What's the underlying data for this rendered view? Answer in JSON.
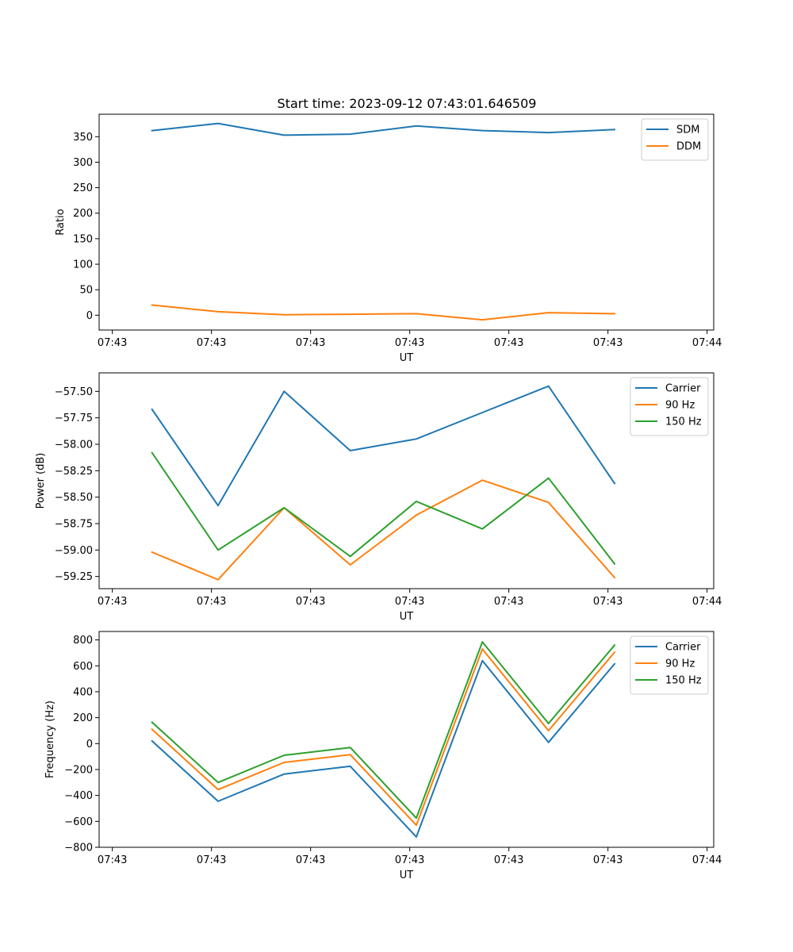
{
  "figure_title": "Start time: 2023-09-12 07:43:01.646509",
  "colors": {
    "blue": "#1f77b4",
    "orange": "#ff7f0e",
    "green": "#2ca02c"
  },
  "chart_data": [
    {
      "type": "line",
      "title": "Start time: 2023-09-12 07:43:01.646509",
      "xlabel": "UT",
      "ylabel": "Ratio",
      "x": [
        1,
        2,
        3,
        4,
        5,
        6,
        7,
        8
      ],
      "xlim": [
        0.2,
        9.5
      ],
      "xticks": [
        0.4,
        1.9,
        3.4,
        4.9,
        6.4,
        7.9,
        9.4
      ],
      "xtick_labels": [
        "07:43",
        "07:43",
        "07:43",
        "07:43",
        "07:43",
        "07:43",
        "07:44"
      ],
      "ylim": [
        -29,
        394
      ],
      "yticks": [
        0,
        50,
        100,
        150,
        200,
        250,
        300,
        350
      ],
      "ytick_labels": [
        "0",
        "50",
        "100",
        "150",
        "200",
        "250",
        "300",
        "350"
      ],
      "legend": "top-right",
      "series": [
        {
          "name": "SDM",
          "color": "#1f77b4",
          "values": [
            362,
            376,
            353,
            355,
            371,
            362,
            358,
            364
          ]
        },
        {
          "name": "DDM",
          "color": "#ff7f0e",
          "values": [
            20,
            7,
            1,
            2,
            3,
            -9,
            5,
            3
          ]
        }
      ]
    },
    {
      "type": "line",
      "title": "",
      "xlabel": "UT",
      "ylabel": "Power (dB)",
      "x": [
        1,
        2,
        3,
        4,
        5,
        6,
        7,
        8
      ],
      "xlim": [
        0.2,
        9.5
      ],
      "xticks": [
        0.4,
        1.9,
        3.4,
        4.9,
        6.4,
        7.9,
        9.4
      ],
      "xtick_labels": [
        "07:43",
        "07:43",
        "07:43",
        "07:43",
        "07:43",
        "07:43",
        "07:44"
      ],
      "ylim": [
        -59.365,
        -57.325
      ],
      "yticks": [
        -59.25,
        -59.0,
        -58.75,
        -58.5,
        -58.25,
        -58.0,
        -57.75,
        -57.5
      ],
      "ytick_labels": [
        "−59.25",
        "−59.00",
        "−58.75",
        "−58.50",
        "−58.25",
        "−58.00",
        "−57.75",
        "−57.50"
      ],
      "legend": "top-right",
      "series": [
        {
          "name": "Carrier",
          "color": "#1f77b4",
          "values": [
            -57.67,
            -58.58,
            -57.5,
            -58.06,
            -57.95,
            -57.7,
            -57.45,
            -58.37
          ]
        },
        {
          "name": "90 Hz",
          "color": "#ff7f0e",
          "values": [
            -59.02,
            -59.28,
            -58.6,
            -59.14,
            -58.67,
            -58.34,
            -58.55,
            -59.26
          ]
        },
        {
          "name": "150 Hz",
          "color": "#2ca02c",
          "values": [
            -58.08,
            -59.0,
            -58.6,
            -59.06,
            -58.54,
            -58.8,
            -58.32,
            -59.13
          ]
        }
      ]
    },
    {
      "type": "line",
      "title": "",
      "xlabel": "UT",
      "ylabel": "Frequency (Hz)",
      "x": [
        1,
        2,
        3,
        4,
        5,
        6,
        7,
        8
      ],
      "xlim": [
        0.2,
        9.5
      ],
      "xticks": [
        0.4,
        1.9,
        3.4,
        4.9,
        6.4,
        7.9,
        9.4
      ],
      "xtick_labels": [
        "07:43",
        "07:43",
        "07:43",
        "07:43",
        "07:43",
        "07:43",
        "07:44"
      ],
      "ylim": [
        -800,
        865
      ],
      "yticks": [
        -800,
        -600,
        -400,
        -200,
        0,
        200,
        400,
        600,
        800
      ],
      "ytick_labels": [
        "−800",
        "−600",
        "−400",
        "−200",
        "0",
        "200",
        "400",
        "600",
        "800"
      ],
      "legend": "top-right",
      "series": [
        {
          "name": "Carrier",
          "color": "#1f77b4",
          "values": [
            20,
            -445,
            -235,
            -175,
            -720,
            640,
            10,
            615
          ]
        },
        {
          "name": "90 Hz",
          "color": "#ff7f0e",
          "values": [
            110,
            -355,
            -145,
            -85,
            -630,
            730,
            100,
            705
          ]
        },
        {
          "name": "150 Hz",
          "color": "#2ca02c",
          "values": [
            165,
            -300,
            -90,
            -30,
            -575,
            785,
            155,
            760
          ]
        }
      ]
    }
  ]
}
